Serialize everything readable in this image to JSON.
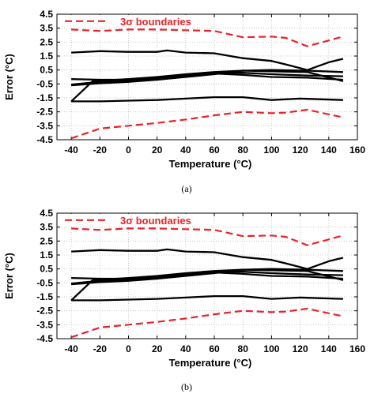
{
  "colors": {
    "boundary": "#e8232a",
    "data": "#000000"
  },
  "chart_data": [
    {
      "type": "line",
      "panel_label": "(a)",
      "xlabel": "Temperature (°C)",
      "ylabel": "Error (°C)",
      "xlim": [
        -50,
        160
      ],
      "ylim": [
        -4.5,
        4.5
      ],
      "xticks": [
        "-40",
        "-20",
        "0",
        "20",
        "40",
        "60",
        "80",
        "100",
        "120",
        "140",
        "160"
      ],
      "yticks": [
        "4.5",
        "3.5",
        "2.5",
        "1.5",
        "0.5",
        "-0.5",
        "-1.5",
        "-2.5",
        "-3.5",
        "-4.5"
      ],
      "grid": true,
      "legend": {
        "position": "top-left",
        "entries": [
          "3σ boundaries"
        ]
      },
      "series": [
        {
          "name": "3σ boundaries",
          "style": "dashed",
          "color": "#e8232a",
          "x": [
            -40,
            -20,
            0,
            20,
            40,
            60,
            80,
            100,
            110,
            125,
            150
          ],
          "y": [
            3.4,
            3.3,
            3.4,
            3.4,
            3.35,
            3.3,
            2.85,
            2.9,
            2.8,
            2.2,
            2.9
          ]
        },
        {
          "style": "dashed",
          "color": "#e8232a",
          "x": [
            -40,
            -20,
            0,
            20,
            40,
            60,
            80,
            100,
            110,
            125,
            150
          ],
          "y": [
            -4.4,
            -3.7,
            -3.5,
            -3.3,
            -3.05,
            -2.75,
            -2.5,
            -2.6,
            -2.55,
            -2.35,
            -2.9
          ]
        },
        {
          "style": "solid",
          "color": "#000000",
          "x": [
            -40,
            -20,
            0,
            20,
            27,
            40,
            60,
            80,
            100,
            110,
            125,
            140,
            150
          ],
          "y": [
            1.75,
            1.85,
            1.8,
            1.8,
            1.9,
            1.75,
            1.7,
            1.35,
            1.15,
            0.9,
            0.5,
            1.05,
            1.3
          ]
        },
        {
          "style": "solid",
          "color": "#000000",
          "x": [
            -40,
            -20,
            0,
            20,
            40,
            60,
            80,
            100,
            120,
            150
          ],
          "y": [
            -1.75,
            -1.75,
            -1.7,
            -1.65,
            -1.55,
            -1.45,
            -1.45,
            -1.65,
            -1.55,
            -1.65
          ]
        },
        {
          "style": "solid",
          "color": "#000000",
          "x": [
            -40,
            -25,
            0,
            20,
            40,
            60,
            80,
            100,
            125,
            150
          ],
          "y": [
            -1.75,
            -0.3,
            -0.15,
            0.0,
            0.2,
            0.35,
            0.45,
            0.5,
            0.45,
            0.35
          ]
        },
        {
          "style": "solid",
          "color": "#000000",
          "x": [
            -40,
            -20,
            0,
            20,
            40,
            60,
            80,
            100,
            125,
            150
          ],
          "y": [
            -0.15,
            -0.2,
            -0.2,
            -0.1,
            0.15,
            0.3,
            0.3,
            0.2,
            0.1,
            0.05
          ]
        },
        {
          "style": "solid",
          "color": "#000000",
          "x": [
            -40,
            -20,
            0,
            20,
            40,
            60,
            80,
            100,
            125,
            150
          ],
          "y": [
            -0.6,
            -0.45,
            -0.35,
            -0.2,
            0.0,
            0.2,
            0.45,
            0.4,
            0.35,
            -0.3
          ]
        },
        {
          "style": "solid",
          "color": "#000000",
          "x": [
            -40,
            -20,
            0,
            20,
            40,
            60,
            80,
            100,
            125,
            150
          ],
          "y": [
            -0.55,
            -0.35,
            -0.3,
            -0.15,
            0.1,
            0.25,
            0.15,
            0.0,
            -0.05,
            -0.2
          ]
        }
      ]
    },
    {
      "type": "line",
      "panel_label": "(b)",
      "xlabel": "Temperature (°C)",
      "ylabel": "Error (°C)",
      "xlim": [
        -50,
        160
      ],
      "ylim": [
        -4.5,
        4.5
      ],
      "xticks": [
        "-40",
        "-20",
        "0",
        "20",
        "40",
        "60",
        "80",
        "100",
        "120",
        "140",
        "160"
      ],
      "yticks": [
        "4.5",
        "3.5",
        "2.5",
        "1.5",
        "0.5",
        "-0.5",
        "-1.5",
        "-2.5",
        "-3.5",
        "-4.5"
      ],
      "grid": true,
      "legend": {
        "position": "top-left",
        "entries": [
          "3σ boundaries"
        ]
      },
      "series": [
        {
          "name": "3σ boundaries",
          "style": "dashed",
          "color": "#e8232a",
          "x": [
            -40,
            -20,
            0,
            20,
            40,
            60,
            80,
            100,
            110,
            125,
            150
          ],
          "y": [
            3.4,
            3.3,
            3.4,
            3.4,
            3.35,
            3.3,
            2.85,
            2.9,
            2.8,
            2.2,
            2.9
          ]
        },
        {
          "style": "dashed",
          "color": "#e8232a",
          "x": [
            -40,
            -20,
            0,
            20,
            40,
            60,
            80,
            100,
            110,
            125,
            150
          ],
          "y": [
            -4.4,
            -3.7,
            -3.5,
            -3.3,
            -3.05,
            -2.75,
            -2.5,
            -2.6,
            -2.55,
            -2.35,
            -2.9
          ]
        },
        {
          "style": "solid",
          "color": "#000000",
          "x": [
            -40,
            -20,
            0,
            20,
            27,
            40,
            60,
            80,
            100,
            110,
            125,
            140,
            150
          ],
          "y": [
            1.75,
            1.85,
            1.8,
            1.8,
            1.9,
            1.75,
            1.7,
            1.35,
            1.15,
            0.9,
            0.5,
            1.05,
            1.3
          ]
        },
        {
          "style": "solid",
          "color": "#000000",
          "x": [
            -40,
            -20,
            0,
            20,
            40,
            60,
            80,
            100,
            120,
            150
          ],
          "y": [
            -1.75,
            -1.75,
            -1.7,
            -1.65,
            -1.55,
            -1.45,
            -1.45,
            -1.65,
            -1.55,
            -1.65
          ]
        },
        {
          "style": "solid",
          "color": "#000000",
          "x": [
            -40,
            -25,
            0,
            20,
            40,
            60,
            80,
            100,
            125,
            150
          ],
          "y": [
            -1.75,
            -0.3,
            -0.15,
            0.0,
            0.2,
            0.35,
            0.45,
            0.5,
            0.45,
            0.35
          ]
        },
        {
          "style": "solid",
          "color": "#000000",
          "x": [
            -40,
            -20,
            0,
            20,
            40,
            60,
            80,
            100,
            125,
            150
          ],
          "y": [
            -0.15,
            -0.2,
            -0.2,
            -0.1,
            0.15,
            0.3,
            0.3,
            0.2,
            0.1,
            0.05
          ]
        },
        {
          "style": "solid",
          "color": "#000000",
          "x": [
            -40,
            -20,
            0,
            20,
            40,
            60,
            80,
            100,
            125,
            150
          ],
          "y": [
            -0.6,
            -0.45,
            -0.35,
            -0.2,
            0.0,
            0.2,
            0.45,
            0.4,
            0.35,
            -0.3
          ]
        },
        {
          "style": "solid",
          "color": "#000000",
          "x": [
            -40,
            -20,
            0,
            20,
            40,
            60,
            80,
            100,
            125,
            150
          ],
          "y": [
            -0.55,
            -0.35,
            -0.3,
            -0.15,
            0.1,
            0.25,
            0.15,
            0.0,
            -0.05,
            -0.2
          ]
        }
      ]
    }
  ]
}
